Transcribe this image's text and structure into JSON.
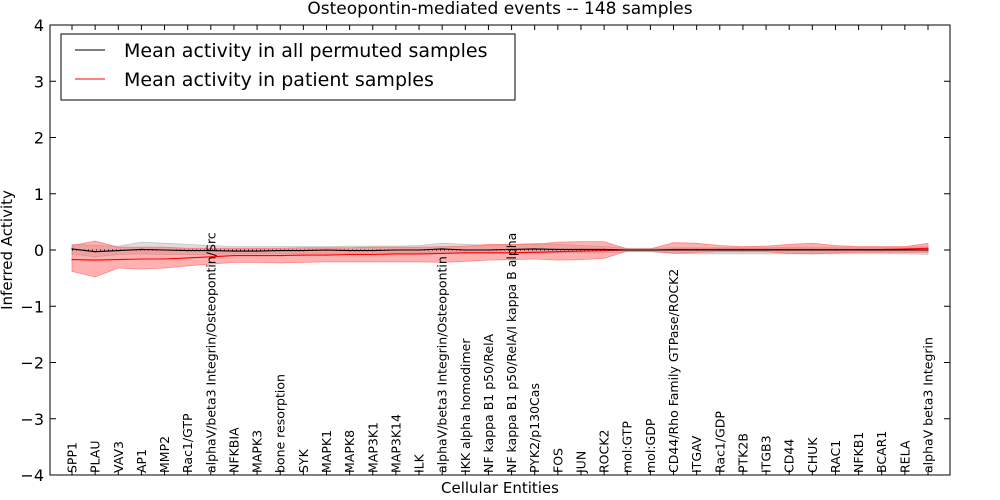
{
  "chart_data": {
    "type": "line",
    "title": "Osteopontin-mediated events -- 148 samples",
    "xlabel": "Cellular Entities",
    "ylabel": "Inferred Activity",
    "ylim": [
      -4,
      4
    ],
    "yticks": [
      -4,
      -3,
      -2,
      -1,
      0,
      1,
      2,
      3,
      4
    ],
    "ytick_labels": [
      "−4",
      "−3",
      "−2",
      "−1",
      "0",
      "1",
      "2",
      "3",
      "4"
    ],
    "legend_position": "top-left",
    "categories": [
      "SPP1",
      "PLAU",
      "VAV3",
      "AP1",
      "MMP2",
      "Rac1/GTP",
      "alphaV/beta3 Integrin/Osteopontin/Src",
      "NFKBIA",
      "MAPK3",
      "bone resorption",
      "SYK",
      "MAPK1",
      "MAPK8",
      "MAP3K1",
      "MAP3K14",
      "ILK",
      "alphaV/beta3 Integrin/Osteopontin",
      "IKK alpha homodimer",
      "NF kappa B1 p50/RelA",
      "NF kappa B1 p50/RelA/I kappa B alpha",
      "PYK2/p130Cas",
      "FOS",
      "JUN",
      "ROCK2",
      "mol:GTP",
      "mol:GDP",
      "CD44/Rho Family GTPase/ROCK2",
      "ITGAV",
      "Rac1/GDP",
      "PTK2B",
      "ITGB3",
      "CD44",
      "CHUK",
      "RAC1",
      "NFKB1",
      "BCAR1",
      "RELA",
      "alphaV beta3 Integrin"
    ],
    "series": [
      {
        "name": "Mean activity in all permuted samples",
        "color": "#000000",
        "values": [
          0.02,
          -0.03,
          -0.01,
          0.01,
          0.0,
          -0.01,
          -0.01,
          -0.02,
          -0.02,
          -0.01,
          -0.01,
          0.0,
          -0.01,
          -0.01,
          0.0,
          0.0,
          0.02,
          0.0,
          0.0,
          0.01,
          0.02,
          0.01,
          0.01,
          0.01,
          0.0,
          0.0,
          0.0,
          0.0,
          0.0,
          0.0,
          0.0,
          0.0,
          0.0,
          0.0,
          0.0,
          0.0,
          0.0,
          0.0
        ],
        "band_lower": [
          -0.07,
          -0.12,
          -0.08,
          -0.07,
          -0.08,
          -0.08,
          -0.08,
          -0.07,
          -0.07,
          -0.07,
          -0.06,
          -0.06,
          -0.06,
          -0.06,
          -0.05,
          -0.05,
          -0.05,
          -0.05,
          -0.05,
          -0.05,
          -0.05,
          -0.05,
          -0.05,
          -0.05,
          -0.03,
          -0.03,
          -0.06,
          -0.07,
          -0.07,
          -0.07,
          -0.07,
          -0.07,
          -0.07,
          -0.07,
          -0.07,
          -0.07,
          -0.07,
          -0.08
        ],
        "band_upper": [
          0.1,
          0.08,
          0.07,
          0.14,
          0.12,
          0.1,
          0.08,
          0.06,
          0.06,
          0.06,
          0.06,
          0.06,
          0.07,
          0.07,
          0.07,
          0.08,
          0.12,
          0.1,
          0.08,
          0.1,
          0.12,
          0.1,
          0.08,
          0.06,
          0.03,
          0.03,
          0.04,
          0.04,
          0.04,
          0.04,
          0.04,
          0.05,
          0.05,
          0.05,
          0.05,
          0.05,
          0.05,
          0.06
        ]
      },
      {
        "name": "Mean activity in patient samples",
        "color": "#ff0000",
        "values": [
          -0.17,
          -0.18,
          -0.17,
          -0.16,
          -0.16,
          -0.14,
          -0.12,
          -0.1,
          -0.1,
          -0.1,
          -0.09,
          -0.09,
          -0.08,
          -0.08,
          -0.07,
          -0.07,
          -0.06,
          -0.05,
          -0.05,
          -0.05,
          -0.04,
          -0.03,
          -0.02,
          -0.01,
          0.0,
          0.0,
          0.01,
          0.01,
          0.01,
          0.01,
          0.01,
          0.01,
          0.01,
          0.01,
          0.01,
          0.01,
          0.02,
          0.03
        ],
        "band_lower": [
          -0.38,
          -0.48,
          -0.32,
          -0.34,
          -0.32,
          -0.28,
          -0.25,
          -0.22,
          -0.22,
          -0.23,
          -0.22,
          -0.21,
          -0.21,
          -0.21,
          -0.21,
          -0.21,
          -0.22,
          -0.2,
          -0.18,
          -0.17,
          -0.16,
          -0.18,
          -0.17,
          -0.15,
          -0.02,
          -0.02,
          -0.06,
          -0.04,
          -0.03,
          -0.03,
          -0.03,
          -0.06,
          -0.07,
          -0.05,
          -0.04,
          -0.04,
          -0.04,
          -0.04
        ],
        "band_upper": [
          0.08,
          0.16,
          0.05,
          0.05,
          0.05,
          0.03,
          0.03,
          0.03,
          0.03,
          0.03,
          0.04,
          0.04,
          0.04,
          0.05,
          0.05,
          0.05,
          0.06,
          0.07,
          0.1,
          0.1,
          0.1,
          0.14,
          0.15,
          0.15,
          0.02,
          0.02,
          0.13,
          0.12,
          0.08,
          0.06,
          0.07,
          0.1,
          0.12,
          0.08,
          0.06,
          0.06,
          0.06,
          0.12
        ]
      }
    ]
  }
}
